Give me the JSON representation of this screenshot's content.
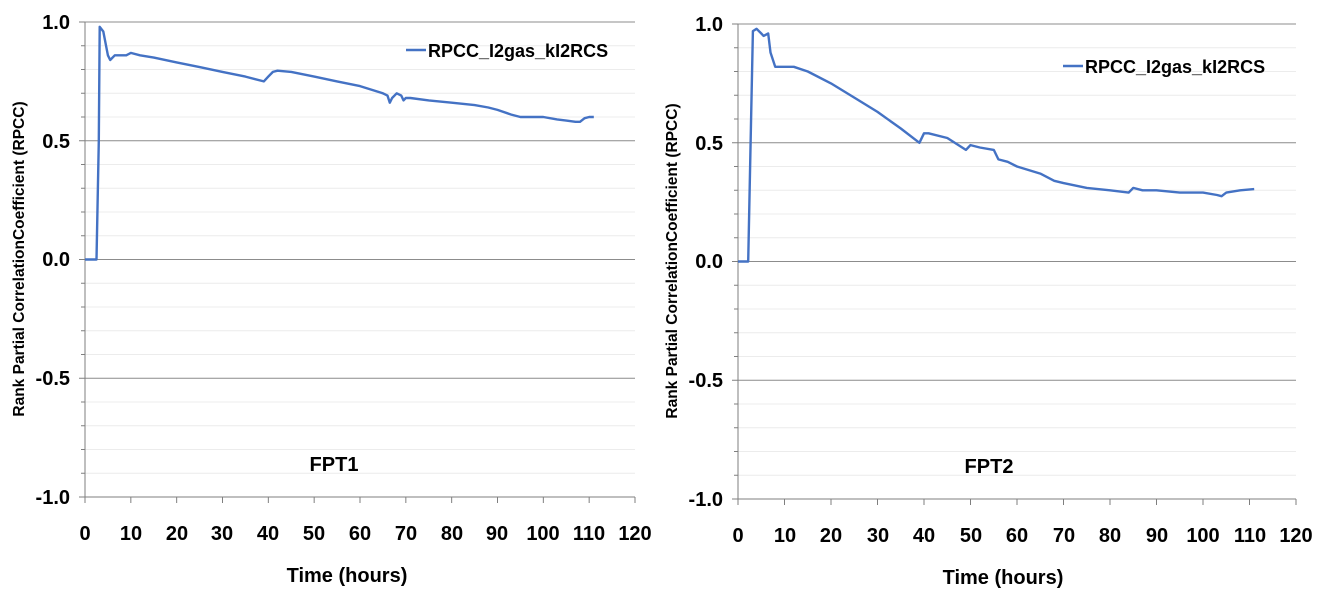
{
  "chart_data": [
    {
      "type": "line",
      "title": "",
      "xlabel": "Time (hours)",
      "ylabel": "Rank Partial CorrelationCoefficient (RPCC)",
      "annotation": "FPT1",
      "xlim": [
        0,
        120
      ],
      "ylim": [
        -1.0,
        1.0
      ],
      "xticks": [
        "0",
        "10",
        "20",
        "30",
        "40",
        "50",
        "60",
        "70",
        "80",
        "90",
        "100",
        "110",
        "120"
      ],
      "yticks": [
        "1.0",
        "0.5",
        "0.0",
        "-0.5",
        "-1.0"
      ],
      "grid": "horizontal",
      "legend": "top-right",
      "color": "#4472C4",
      "series": [
        {
          "name": "RPCC_I2gas_kI2RCS",
          "x": [
            0,
            2.5,
            3.0,
            3.2,
            4.0,
            5.0,
            5.5,
            6.5,
            8,
            9,
            10,
            12,
            15,
            20,
            25,
            30,
            35,
            39,
            40,
            41,
            42,
            45,
            50,
            55,
            60,
            65,
            66,
            66.5,
            67,
            68,
            69,
            69.5,
            70,
            71,
            75,
            80,
            85,
            88,
            90,
            93,
            95,
            98,
            100,
            103,
            105,
            107,
            108,
            109,
            110,
            111
          ],
          "y": [
            0.0,
            0.0,
            0.5,
            0.98,
            0.96,
            0.86,
            0.84,
            0.86,
            0.86,
            0.86,
            0.87,
            0.86,
            0.85,
            0.83,
            0.81,
            0.79,
            0.77,
            0.75,
            0.77,
            0.79,
            0.795,
            0.79,
            0.77,
            0.75,
            0.73,
            0.7,
            0.69,
            0.66,
            0.68,
            0.7,
            0.69,
            0.67,
            0.68,
            0.68,
            0.67,
            0.66,
            0.65,
            0.64,
            0.63,
            0.61,
            0.6,
            0.6,
            0.6,
            0.59,
            0.585,
            0.58,
            0.58,
            0.595,
            0.6,
            0.6
          ]
        }
      ]
    },
    {
      "type": "line",
      "title": "",
      "xlabel": "Time (hours)",
      "ylabel": "Rank Partial CorrelationCoefficient (RPCC)",
      "annotation": "FPT2",
      "xlim": [
        0,
        120
      ],
      "ylim": [
        -1.0,
        1.0
      ],
      "xticks": [
        "0",
        "10",
        "20",
        "30",
        "40",
        "50",
        "60",
        "70",
        "80",
        "90",
        "100",
        "110",
        "120"
      ],
      "yticks": [
        "1.0",
        "0.5",
        "0.0",
        "-0.5",
        "-1.0"
      ],
      "grid": "horizontal",
      "legend": "top-right",
      "color": "#4472C4",
      "series": [
        {
          "name": "RPCC_I2gas_kI2RCS",
          "x": [
            0,
            2.2,
            2.7,
            3.2,
            4.0,
            5.0,
            5.5,
            6.5,
            7,
            8,
            9,
            10,
            12,
            15,
            20,
            25,
            30,
            35,
            39,
            40,
            41,
            45,
            49,
            49.5,
            50,
            52,
            55,
            56,
            58,
            60,
            65,
            68,
            70,
            75,
            80,
            84,
            84.5,
            85,
            87,
            90,
            95,
            100,
            103,
            104,
            105,
            108,
            111
          ],
          "y": [
            0.0,
            0.0,
            0.5,
            0.97,
            0.98,
            0.96,
            0.95,
            0.96,
            0.88,
            0.82,
            0.82,
            0.82,
            0.82,
            0.8,
            0.75,
            0.69,
            0.63,
            0.56,
            0.5,
            0.54,
            0.54,
            0.52,
            0.47,
            0.48,
            0.49,
            0.48,
            0.47,
            0.43,
            0.42,
            0.4,
            0.37,
            0.34,
            0.33,
            0.31,
            0.3,
            0.29,
            0.3,
            0.31,
            0.3,
            0.3,
            0.29,
            0.29,
            0.28,
            0.275,
            0.29,
            0.3,
            0.305
          ]
        }
      ]
    }
  ]
}
